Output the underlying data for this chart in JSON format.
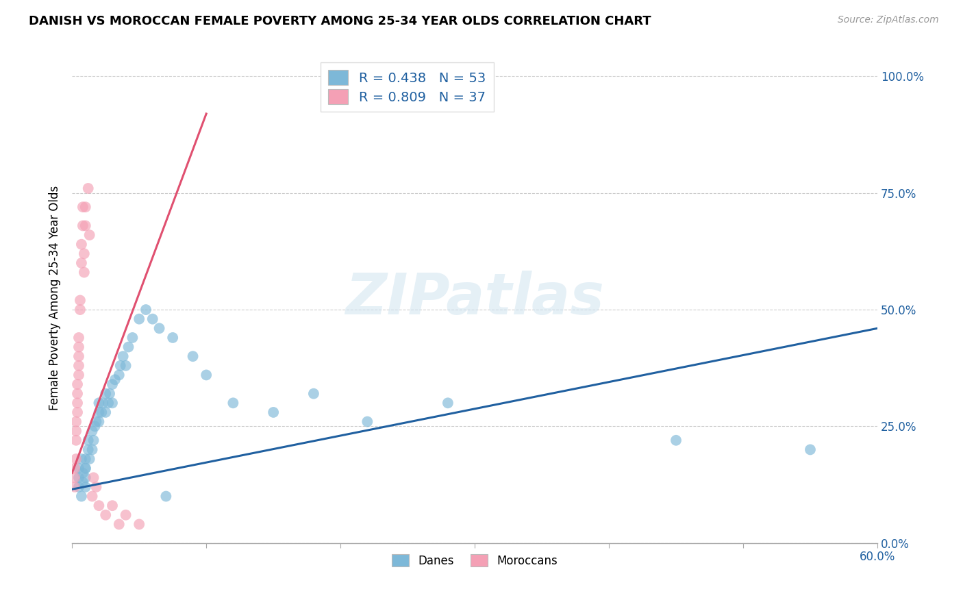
{
  "title": "DANISH VS MOROCCAN FEMALE POVERTY AMONG 25-34 YEAR OLDS CORRELATION CHART",
  "source": "Source: ZipAtlas.com",
  "ylabel": "Female Poverty Among 25-34 Year Olds",
  "xlim": [
    0.0,
    0.6
  ],
  "ylim": [
    0.0,
    1.05
  ],
  "xticks": [
    0.0,
    0.1,
    0.2,
    0.3,
    0.4,
    0.5,
    0.6
  ],
  "yticks": [
    0.0,
    0.25,
    0.5,
    0.75,
    1.0
  ],
  "right_ytick_labels": [
    "0.0%",
    "25.0%",
    "50.0%",
    "75.0%",
    "100.0%"
  ],
  "xtick_labels_show": {
    "0.0": "0.0%",
    "0.60": "60.0%"
  },
  "blue_color": "#7db8d8",
  "pink_color": "#f4a0b5",
  "blue_line_color": "#2060a0",
  "pink_line_color": "#e05070",
  "watermark_text": "ZIPatlas",
  "legend_label_danes": "Danes",
  "legend_label_moroccans": "Moroccans",
  "danes_x": [
    0.005,
    0.005,
    0.005,
    0.007,
    0.007,
    0.008,
    0.008,
    0.01,
    0.01,
    0.01,
    0.01,
    0.01,
    0.012,
    0.012,
    0.013,
    0.015,
    0.015,
    0.016,
    0.017,
    0.018,
    0.02,
    0.02,
    0.02,
    0.022,
    0.023,
    0.025,
    0.025,
    0.027,
    0.028,
    0.03,
    0.03,
    0.032,
    0.035,
    0.036,
    0.038,
    0.04,
    0.042,
    0.045,
    0.05,
    0.055,
    0.06,
    0.065,
    0.07,
    0.075,
    0.09,
    0.1,
    0.12,
    0.15,
    0.18,
    0.22,
    0.28,
    0.45,
    0.55
  ],
  "danes_y": [
    0.12,
    0.14,
    0.16,
    0.1,
    0.18,
    0.13,
    0.15,
    0.16,
    0.18,
    0.14,
    0.12,
    0.16,
    0.2,
    0.22,
    0.18,
    0.2,
    0.24,
    0.22,
    0.25,
    0.26,
    0.26,
    0.28,
    0.3,
    0.28,
    0.3,
    0.28,
    0.32,
    0.3,
    0.32,
    0.3,
    0.34,
    0.35,
    0.36,
    0.38,
    0.4,
    0.38,
    0.42,
    0.44,
    0.48,
    0.5,
    0.48,
    0.46,
    0.1,
    0.44,
    0.4,
    0.36,
    0.3,
    0.28,
    0.32,
    0.26,
    0.3,
    0.22,
    0.2
  ],
  "moroccans_x": [
    0.002,
    0.002,
    0.002,
    0.003,
    0.003,
    0.003,
    0.003,
    0.004,
    0.004,
    0.004,
    0.004,
    0.005,
    0.005,
    0.005,
    0.005,
    0.005,
    0.006,
    0.006,
    0.007,
    0.007,
    0.008,
    0.008,
    0.009,
    0.009,
    0.01,
    0.01,
    0.012,
    0.013,
    0.015,
    0.016,
    0.018,
    0.02,
    0.025,
    0.03,
    0.035,
    0.04,
    0.05
  ],
  "moroccans_y": [
    0.12,
    0.14,
    0.16,
    0.18,
    0.22,
    0.24,
    0.26,
    0.28,
    0.3,
    0.32,
    0.34,
    0.36,
    0.38,
    0.4,
    0.42,
    0.44,
    0.5,
    0.52,
    0.6,
    0.64,
    0.68,
    0.72,
    0.58,
    0.62,
    0.68,
    0.72,
    0.76,
    0.66,
    0.1,
    0.14,
    0.12,
    0.08,
    0.06,
    0.08,
    0.04,
    0.06,
    0.04
  ],
  "danes_line_x": [
    0.0,
    0.6
  ],
  "danes_line_y": [
    0.115,
    0.46
  ],
  "moroccans_line_x": [
    0.0,
    0.1
  ],
  "moroccans_line_y": [
    0.15,
    0.92
  ]
}
